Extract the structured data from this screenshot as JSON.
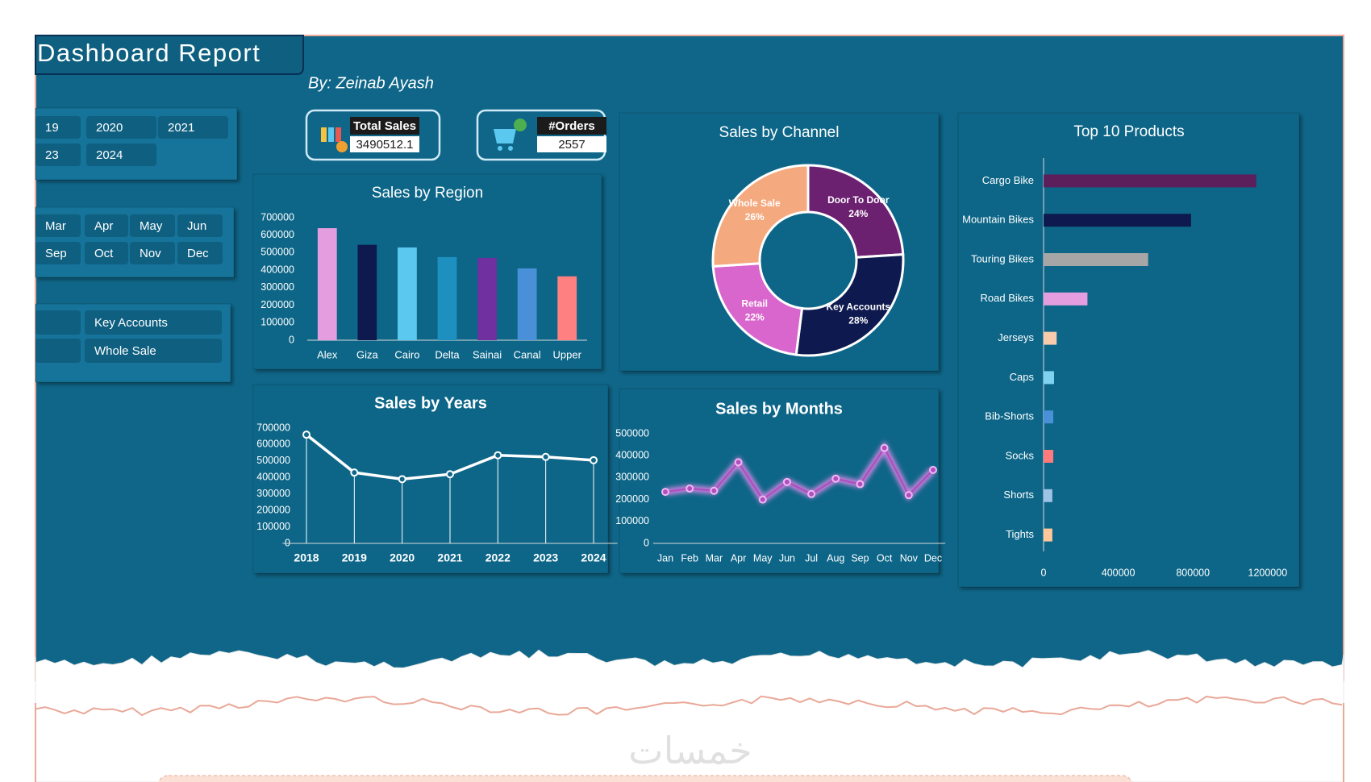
{
  "header": {
    "title": "Dashboard Report",
    "byline": "By: Zeinab Ayash"
  },
  "slicers": {
    "years": [
      "19",
      "2020",
      "2021",
      "23",
      "2024"
    ],
    "months": [
      "Mar",
      "Apr",
      "May",
      "Jun",
      "Sep",
      "Oct",
      "Nov",
      "Dec"
    ],
    "channels": [
      "Key Accounts",
      "Whole Sale"
    ]
  },
  "kpis": [
    {
      "label": "Total Sales",
      "value": 3490512.1
    },
    {
      "label": "#Orders",
      "value": 2557
    }
  ],
  "watermark": "خمسات",
  "chart_data": [
    {
      "type": "bar",
      "title": "Sales by Region",
      "categories": [
        "Alex",
        "Giza",
        "Cairo",
        "Delta",
        "Sainai",
        "Canal",
        "Upper"
      ],
      "values": [
        640000,
        545000,
        530000,
        475000,
        470000,
        410000,
        365000
      ],
      "colors": [
        "#e49ee0",
        "#0e1a4f",
        "#5bc8f0",
        "#1e90c0",
        "#7030a0",
        "#4a90d9",
        "#ff8080"
      ],
      "ylim": [
        0,
        700000
      ],
      "yticks": [
        0,
        100000,
        200000,
        300000,
        400000,
        500000,
        600000,
        700000
      ]
    },
    {
      "type": "donut",
      "title": "Sales by Channel",
      "categories": [
        "Door To Door",
        "Key Accounts",
        "Retail",
        "Whole Sale"
      ],
      "values": [
        24,
        28,
        22,
        26
      ],
      "value_labels": [
        "24%",
        "28%",
        "22%",
        "26%"
      ],
      "colors": [
        "#6b2070",
        "#0e1a4f",
        "#d966cc",
        "#f4a97e"
      ]
    },
    {
      "type": "hbar",
      "title": "Top 10 Products",
      "categories": [
        "Cargo Bike",
        "Mountain Bikes",
        "Touring Bikes",
        "Road Bikes",
        "Jerseys",
        "Caps",
        "Bib-Shorts",
        "Socks",
        "Shorts",
        "Tights"
      ],
      "values": [
        1139000,
        790000,
        560000,
        235000,
        70000,
        56000,
        52000,
        52000,
        47000,
        47000
      ],
      "colors": [
        "#5c1f5c",
        "#0e1a4f",
        "#a6a6a6",
        "#e49ee0",
        "#f8cbad",
        "#7fd3f0",
        "#4a90d9",
        "#ff7b7b",
        "#9dc3e6",
        "#ffc89a"
      ],
      "xlim": [
        0,
        1300000
      ],
      "xticks": [
        0,
        400000,
        800000,
        1200000
      ]
    },
    {
      "type": "line",
      "title": "Sales by Years",
      "categories": [
        "2018",
        "2019",
        "2020",
        "2021",
        "2022",
        "2023",
        "2024"
      ],
      "values": [
        660000,
        430000,
        390000,
        420000,
        535000,
        525000,
        505000
      ],
      "color": "#ffffff",
      "drop_lines": true,
      "glow": false,
      "ylim": [
        0,
        700000
      ],
      "yticks": [
        0,
        100000,
        200000,
        300000,
        400000,
        500000,
        600000,
        700000
      ]
    },
    {
      "type": "line",
      "title": "Sales by Months",
      "categories": [
        "Jan",
        "Feb",
        "Mar",
        "Apr",
        "May",
        "Jun",
        "Jul",
        "Aug",
        "Sep",
        "Oct",
        "Nov",
        "Dec"
      ],
      "values": [
        235000,
        250000,
        240000,
        370000,
        200000,
        280000,
        225000,
        295000,
        270000,
        435000,
        220000,
        335000
      ],
      "color": "#b04fc0",
      "drop_lines": false,
      "glow": true,
      "ylim": [
        0,
        500000
      ],
      "yticks": [
        0,
        100000,
        200000,
        300000,
        400000,
        500000
      ]
    }
  ]
}
